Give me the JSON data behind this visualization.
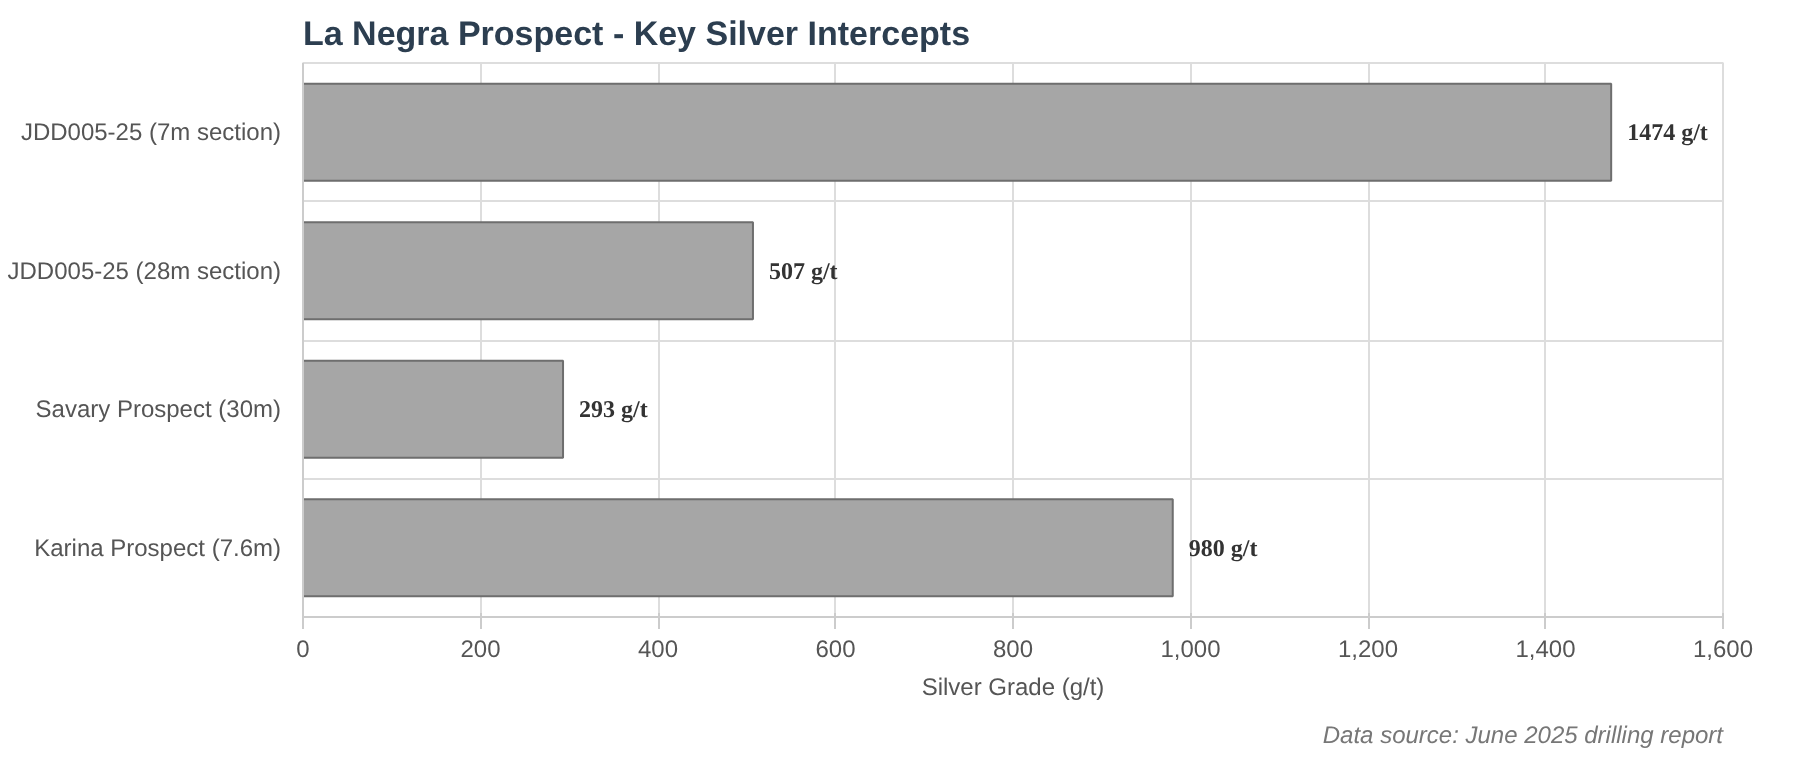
{
  "chart_data": {
    "type": "bar",
    "orientation": "horizontal",
    "title": "La Negra Prospect - Key Silver Intercepts",
    "xlabel": "Silver Grade (g/t)",
    "categories": [
      "JDD005-25 (7m section)",
      "JDD005-25 (28m section)",
      "Savary Prospect (30m)",
      "Karina Prospect (7.6m)"
    ],
    "values": [
      1474,
      507,
      293,
      980
    ],
    "color": "#a6a6a6",
    "value_labels": [
      "1474 g/t",
      "507 g/t",
      "293 g/t",
      "980 g/t"
    ],
    "xlim": [
      0,
      1600
    ],
    "xticks": [
      0,
      200,
      400,
      600,
      800,
      {
        "value": 1000,
        "label": "1,000"
      },
      {
        "value": 1200,
        "label": "1,200"
      },
      {
        "value": 1400,
        "label": "1,400"
      },
      {
        "value": 1600,
        "label": "1,600"
      }
    ],
    "grid": true,
    "annotations": [
      "Data source: June 2025 drilling report"
    ]
  }
}
